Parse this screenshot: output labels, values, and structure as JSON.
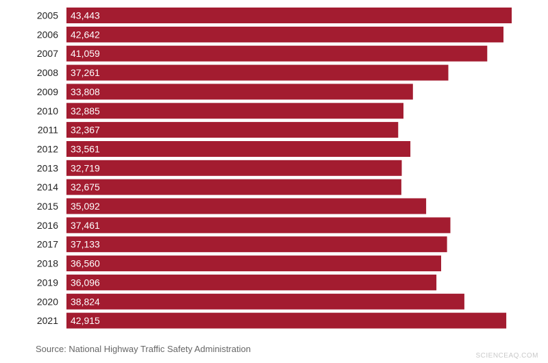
{
  "chart_data": {
    "type": "bar",
    "orientation": "horizontal",
    "categories": [
      "2005",
      "2006",
      "2007",
      "2008",
      "2009",
      "2010",
      "2011",
      "2012",
      "2013",
      "2014",
      "2015",
      "2016",
      "2017",
      "2018",
      "2019",
      "2020",
      "2021"
    ],
    "values": [
      43443,
      42642,
      41059,
      37261,
      33808,
      32885,
      32367,
      33561,
      32719,
      32675,
      35092,
      37461,
      37133,
      36560,
      36096,
      38824,
      42915
    ],
    "value_labels": [
      "43,443",
      "42,642",
      "41,059",
      "37,261",
      "33,808",
      "32,885",
      "32,367",
      "33,561",
      "32,719",
      "32,675",
      "35,092",
      "37,461",
      "37,133",
      "36,560",
      "36,096",
      "38,824",
      "42,915"
    ],
    "xlim": [
      0,
      43443
    ],
    "grid": false,
    "title": "",
    "xlabel": "",
    "ylabel": ""
  },
  "source": "Source: National Highway Traffic Safety Administration",
  "watermark": "SCIENCEAQ.COM",
  "colors": {
    "bar": "#a31c30",
    "value_text": "#ffffff",
    "category_text": "#222222"
  }
}
